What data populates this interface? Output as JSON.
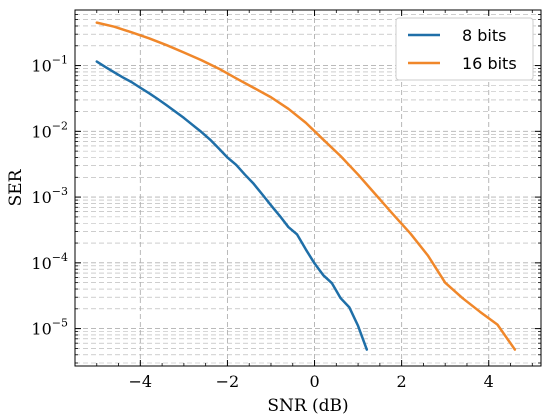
{
  "chart_data": {
    "type": "line",
    "title": "",
    "xlabel": "SNR (dB)",
    "ylabel": "SER",
    "xlim": [
      -5.5,
      5.2
    ],
    "ylim": [
      2.7e-06,
      0.7
    ],
    "yscale": "log",
    "grid": true,
    "legend_position": "top-right",
    "x_ticks": [
      -4,
      -2,
      0,
      2,
      4
    ],
    "x_tick_labels": [
      "−4",
      "−2",
      "0",
      "2",
      "4"
    ],
    "y_ticks": [
      1e-05,
      0.0001,
      0.001,
      0.01,
      0.1
    ],
    "y_tick_bases": [
      "10",
      "10",
      "10",
      "10",
      "10"
    ],
    "y_tick_exponents": [
      "−5",
      "−4",
      "−3",
      "−2",
      "−1"
    ],
    "series": [
      {
        "name": "8 bits",
        "color": "#1f6fa8",
        "x": [
          -5.0,
          -4.8,
          -4.6,
          -4.4,
          -4.2,
          -4.0,
          -3.8,
          -3.6,
          -3.4,
          -3.2,
          -3.0,
          -2.8,
          -2.6,
          -2.4,
          -2.2,
          -2.0,
          -1.8,
          -1.6,
          -1.4,
          -1.2,
          -1.0,
          -0.8,
          -0.6,
          -0.4,
          -0.2,
          0.0,
          0.2,
          0.4,
          0.6,
          0.8,
          1.0,
          1.2
        ],
        "y": [
          0.115,
          0.095,
          0.079,
          0.066,
          0.056,
          0.046,
          0.038,
          0.031,
          0.025,
          0.02,
          0.016,
          0.0125,
          0.0098,
          0.0075,
          0.0055,
          0.004,
          0.0031,
          0.0022,
          0.0016,
          0.0011,
          0.00075,
          0.00052,
          0.00035,
          0.00027,
          0.00016,
          9.8e-05,
          6.5e-05,
          4.9e-05,
          2.9e-05,
          2.1e-05,
          1.1e-05,
          4.8e-06
        ]
      },
      {
        "name": "16 bits",
        "color": "#f0872a",
        "x": [
          -5.0,
          -4.6,
          -4.2,
          -3.8,
          -3.4,
          -3.0,
          -2.6,
          -2.2,
          -1.8,
          -1.4,
          -1.0,
          -0.6,
          -0.2,
          0.2,
          0.6,
          1.0,
          1.4,
          1.8,
          2.2,
          2.6,
          3.0,
          3.4,
          3.8,
          4.2,
          4.6
        ],
        "y": [
          0.45,
          0.39,
          0.32,
          0.26,
          0.205,
          0.158,
          0.121,
          0.09,
          0.064,
          0.046,
          0.033,
          0.022,
          0.0135,
          0.0075,
          0.0042,
          0.0022,
          0.0011,
          0.00055,
          0.00028,
          0.00013,
          5e-05,
          2.9e-05,
          1.8e-05,
          1.15e-05,
          4.8e-06
        ]
      }
    ]
  }
}
